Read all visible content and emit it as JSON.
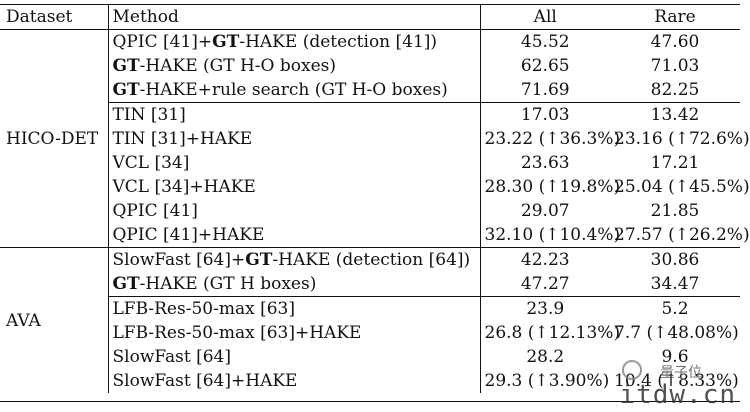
{
  "table": {
    "headers": {
      "dataset": "Dataset",
      "method": "Method",
      "all": "All",
      "rare": "Rare"
    },
    "groups": [
      {
        "dataset": "HICO-DET",
        "rows": [
          {
            "method_parts": [
              {
                "t": "QPIC [41]+"
              },
              {
                "t": "GT",
                "b": true
              },
              {
                "t": "-HAKE (detection [41])"
              }
            ],
            "all": "45.52",
            "rare": "47.60",
            "all_bold": false,
            "rare_bold": false
          },
          {
            "method_parts": [
              {
                "t": "GT",
                "b": true
              },
              {
                "t": "-HAKE (GT H-O boxes)"
              }
            ],
            "all": "62.65",
            "rare": "71.03",
            "all_bold": false,
            "rare_bold": false
          },
          {
            "method_parts": [
              {
                "t": "GT",
                "b": true
              },
              {
                "t": "-HAKE+rule search (GT H-O boxes)"
              }
            ],
            "all": "71.69",
            "rare": "82.25",
            "all_bold": true,
            "rare_bold": true
          },
          {
            "method_parts": [
              {
                "t": "TIN [31]"
              }
            ],
            "all": "17.03",
            "rare": "13.42",
            "all_bold": false,
            "rare_bold": false,
            "sep": true
          },
          {
            "method_parts": [
              {
                "t": "TIN [31]+HAKE"
              }
            ],
            "all": "23.22 (↑36.3%)",
            "rare": "23.16 (↑72.6%)",
            "all_bold": true,
            "rare_bold": true
          },
          {
            "method_parts": [
              {
                "t": "VCL [34]"
              }
            ],
            "all": "23.63",
            "rare": "17.21",
            "all_bold": false,
            "rare_bold": false
          },
          {
            "method_parts": [
              {
                "t": "VCL [34]+HAKE"
              }
            ],
            "all": "28.30 (↑19.8%)",
            "rare": "25.04 (↑45.5%)",
            "all_bold": true,
            "rare_bold": true
          },
          {
            "method_parts": [
              {
                "t": "QPIC [41]"
              }
            ],
            "all": "29.07",
            "rare": "21.85",
            "all_bold": false,
            "rare_bold": false
          },
          {
            "method_parts": [
              {
                "t": "QPIC [41]+HAKE"
              }
            ],
            "all": "32.10 (↑10.4%)",
            "rare": "27.57 (↑26.2%)",
            "all_bold": true,
            "rare_bold": true
          }
        ]
      },
      {
        "dataset": "AVA",
        "rows": [
          {
            "method_parts": [
              {
                "t": "SlowFast [64]+"
              },
              {
                "t": "GT",
                "b": true
              },
              {
                "t": "-HAKE (detection [64])"
              }
            ],
            "all": "42.23",
            "rare": "30.86",
            "all_bold": false,
            "rare_bold": false
          },
          {
            "method_parts": [
              {
                "t": "GT",
                "b": true
              },
              {
                "t": "-HAKE (GT H boxes)"
              }
            ],
            "all": "47.27",
            "rare": "34.47",
            "all_bold": true,
            "rare_bold": true
          },
          {
            "method_parts": [
              {
                "t": "LFB-Res-50-max [63]"
              }
            ],
            "all": "23.9",
            "rare": "5.2",
            "all_bold": false,
            "rare_bold": false,
            "sep": true
          },
          {
            "method_parts": [
              {
                "t": "LFB-Res-50-max [63]+HAKE"
              }
            ],
            "all": "26.8 (↑12.13%)",
            "rare": "7.7 (↑48.08%)",
            "all_bold": true,
            "rare_bold": true
          },
          {
            "method_parts": [
              {
                "t": "SlowFast [64]"
              }
            ],
            "all": "28.2",
            "rare": "9.6",
            "all_bold": false,
            "rare_bold": false
          },
          {
            "method_parts": [
              {
                "t": "SlowFast [64]+HAKE"
              }
            ],
            "all": "29.3 (↑3.90%)",
            "rare": "10.4 (↑8.33%)",
            "all_bold": true,
            "rare_bold": true
          }
        ]
      }
    ]
  },
  "watermark": {
    "line1": "量子位",
    "line2": "itdw.cn"
  }
}
